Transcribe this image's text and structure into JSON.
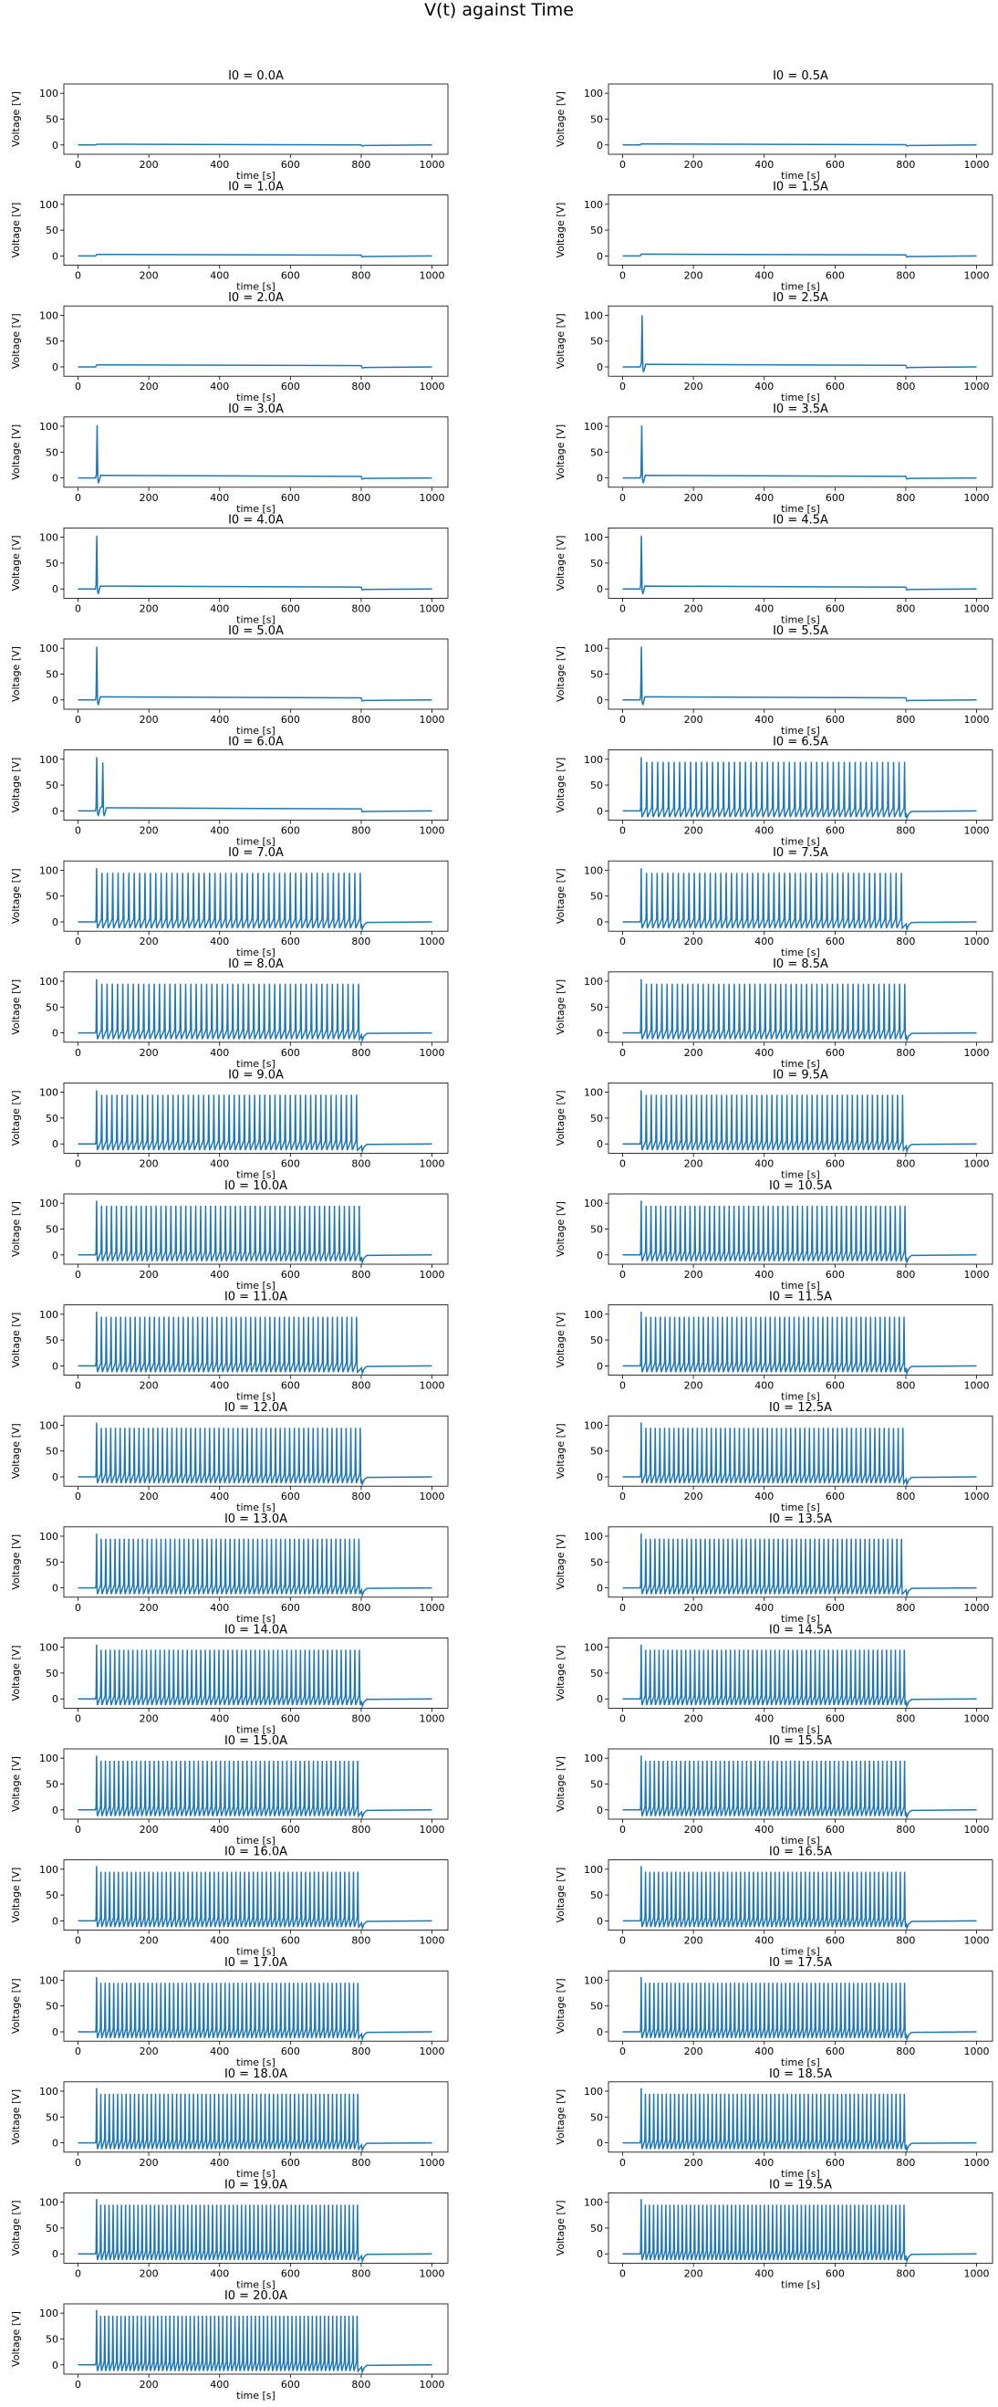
{
  "figure_title": "V(t) against Time",
  "chart_data": {
    "type": "line",
    "xlabel": "time [s]",
    "ylabel": "Voltage [V]",
    "xlim": [
      -40,
      1045
    ],
    "ylim": [
      -18,
      118
    ],
    "xticks": [
      0,
      200,
      400,
      600,
      800,
      1000
    ],
    "yticks": [
      0,
      50,
      100
    ],
    "grid": false,
    "line_color": "#1f77b4",
    "stimulus_window": [
      50,
      800
    ],
    "resting_voltage": 0,
    "subplots": [
      {
        "title": "I0 = 0.0A",
        "I0": 0.0,
        "peak_voltage": null,
        "plateau_voltage": 0,
        "spikes": []
      },
      {
        "title": "I0 = 0.5A",
        "I0": 0.5,
        "peak_voltage": null,
        "plateau_voltage": 0.5,
        "spikes": []
      },
      {
        "title": "I0 = 1.0A",
        "I0": 1.0,
        "peak_voltage": null,
        "plateau_voltage": 1.5,
        "spikes": []
      },
      {
        "title": "I0 = 1.5A",
        "I0": 1.5,
        "peak_voltage": null,
        "plateau_voltage": 2,
        "spikes": []
      },
      {
        "title": "I0 = 2.0A",
        "I0": 2.0,
        "peak_voltage": null,
        "plateau_voltage": 2.5,
        "spikes": []
      },
      {
        "title": "I0 = 2.5A",
        "I0": 2.5,
        "peak_voltage": 100,
        "plateau_voltage": 3,
        "spikes": [
          55
        ]
      },
      {
        "title": "I0 = 3.0A",
        "I0": 3.0,
        "peak_voltage": 102,
        "plateau_voltage": 3,
        "spikes": [
          54
        ]
      },
      {
        "title": "I0 = 3.5A",
        "I0": 3.5,
        "peak_voltage": 102,
        "plateau_voltage": 3,
        "spikes": [
          54
        ]
      },
      {
        "title": "I0 = 4.0A",
        "I0": 4.0,
        "peak_voltage": 103,
        "plateau_voltage": 3.5,
        "spikes": [
          53
        ]
      },
      {
        "title": "I0 = 4.5A",
        "I0": 4.5,
        "peak_voltage": 103,
        "plateau_voltage": 3.5,
        "spikes": [
          53
        ]
      },
      {
        "title": "I0 = 5.0A",
        "I0": 5.0,
        "peak_voltage": 103,
        "plateau_voltage": 4,
        "spikes": [
          53
        ]
      },
      {
        "title": "I0 = 5.5A",
        "I0": 5.5,
        "peak_voltage": 103,
        "plateau_voltage": 4,
        "spikes": [
          53
        ]
      },
      {
        "title": "I0 = 6.0A",
        "I0": 6.0,
        "peak_voltage": 104,
        "plateau_voltage": 4,
        "spikes": [
          53,
          70
        ]
      },
      {
        "title": "I0 = 6.5A",
        "I0": 6.5,
        "peak_voltage": 104,
        "spike_interval": 15.5
      },
      {
        "title": "I0 = 7.0A",
        "I0": 7.0,
        "peak_voltage": 104,
        "spike_interval": 15.2
      },
      {
        "title": "I0 = 7.5A",
        "I0": 7.5,
        "peak_voltage": 104,
        "spike_interval": 15.0
      },
      {
        "title": "I0 = 8.0A",
        "I0": 8.0,
        "peak_voltage": 104,
        "spike_interval": 14.8
      },
      {
        "title": "I0 = 8.5A",
        "I0": 8.5,
        "peak_voltage": 104,
        "spike_interval": 14.6
      },
      {
        "title": "I0 = 9.0A",
        "I0": 9.0,
        "peak_voltage": 104,
        "spike_interval": 14.4
      },
      {
        "title": "I0 = 9.5A",
        "I0": 9.5,
        "peak_voltage": 104,
        "spike_interval": 14.2
      },
      {
        "title": "I0 = 10.0A",
        "I0": 10.0,
        "peak_voltage": 105,
        "spike_interval": 14.0
      },
      {
        "title": "I0 = 10.5A",
        "I0": 10.5,
        "peak_voltage": 105,
        "spike_interval": 13.8
      },
      {
        "title": "I0 = 11.0A",
        "I0": 11.0,
        "peak_voltage": 105,
        "spike_interval": 13.6
      },
      {
        "title": "I0 = 11.5A",
        "I0": 11.5,
        "peak_voltage": 105,
        "spike_interval": 13.5
      },
      {
        "title": "I0 = 12.0A",
        "I0": 12.0,
        "peak_voltage": 105,
        "spike_interval": 13.3
      },
      {
        "title": "I0 = 12.5A",
        "I0": 12.5,
        "peak_voltage": 105,
        "spike_interval": 13.2
      },
      {
        "title": "I0 = 13.0A",
        "I0": 13.0,
        "peak_voltage": 105,
        "spike_interval": 13.0
      },
      {
        "title": "I0 = 13.5A",
        "I0": 13.5,
        "peak_voltage": 105,
        "spike_interval": 12.9
      },
      {
        "title": "I0 = 14.0A",
        "I0": 14.0,
        "peak_voltage": 105,
        "spike_interval": 12.8
      },
      {
        "title": "I0 = 14.5A",
        "I0": 14.5,
        "peak_voltage": 105,
        "spike_interval": 12.6
      },
      {
        "title": "I0 = 15.0A",
        "I0": 15.0,
        "peak_voltage": 105,
        "spike_interval": 12.5
      },
      {
        "title": "I0 = 15.5A",
        "I0": 15.5,
        "peak_voltage": 105,
        "spike_interval": 12.4
      },
      {
        "title": "I0 = 16.0A",
        "I0": 16.0,
        "peak_voltage": 106,
        "spike_interval": 12.3
      },
      {
        "title": "I0 = 16.5A",
        "I0": 16.5,
        "peak_voltage": 106,
        "spike_interval": 12.2
      },
      {
        "title": "I0 = 17.0A",
        "I0": 17.0,
        "peak_voltage": 106,
        "spike_interval": 12.1
      },
      {
        "title": "I0 = 17.5A",
        "I0": 17.5,
        "peak_voltage": 106,
        "spike_interval": 12.0
      },
      {
        "title": "I0 = 18.0A",
        "I0": 18.0,
        "peak_voltage": 106,
        "spike_interval": 11.9
      },
      {
        "title": "I0 = 18.5A",
        "I0": 18.5,
        "peak_voltage": 106,
        "spike_interval": 11.8
      },
      {
        "title": "I0 = 19.0A",
        "I0": 19.0,
        "peak_voltage": 106,
        "spike_interval": 11.7
      },
      {
        "title": "I0 = 19.5A",
        "I0": 19.5,
        "peak_voltage": 106,
        "spike_interval": 11.6
      },
      {
        "title": "I0 = 20.0A",
        "I0": 20.0,
        "peak_voltage": 106,
        "spike_interval": 11.5
      }
    ]
  }
}
